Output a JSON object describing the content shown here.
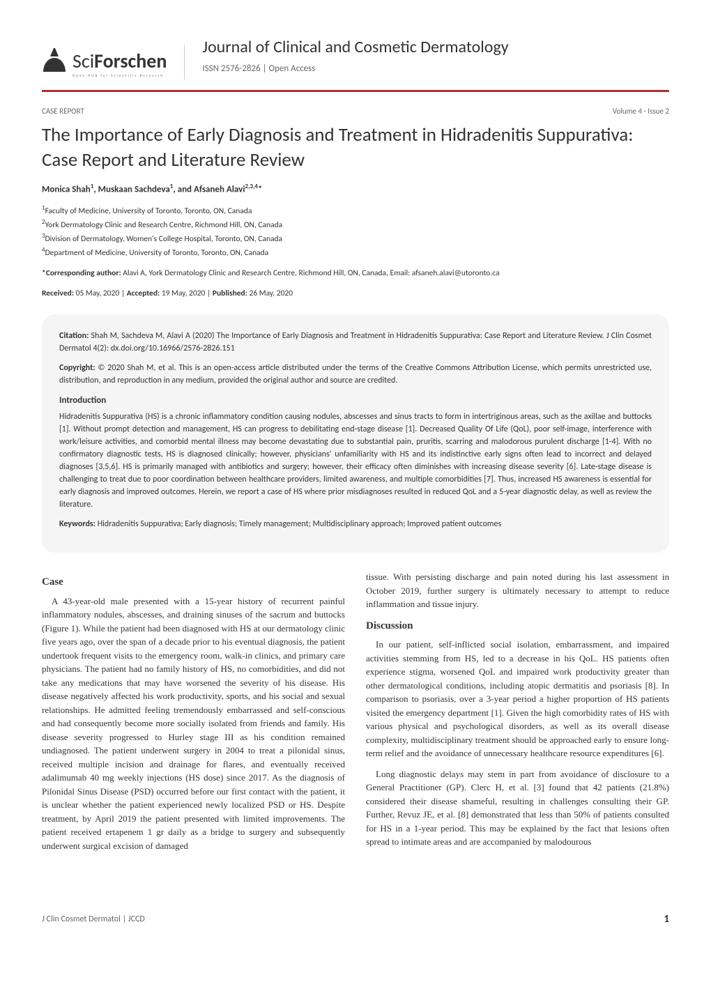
{
  "logo": {
    "main_text_left": "Sci",
    "main_text_right": "Forschen",
    "tagline": "Open HUB for Scientific Research"
  },
  "journal": {
    "title": "Journal of Clinical and Cosmetic Dermatology",
    "issn": "ISSN 2576-2826",
    "access": "Open Access"
  },
  "meta": {
    "type": "CASE REPORT",
    "volume": "Volume 4 - Issue 2"
  },
  "article": {
    "title": "The Importance of Early Diagnosis and Treatment in Hidradenitis Suppurativa: Case Report and Literature Review",
    "authors_html": "Monica Shah<sup>1</sup>, Muskaan Sachdeva<sup>1</sup>, and Afsaneh Alavi<sup>2,3,4</sup>*"
  },
  "affiliations": {
    "a1": "Faculty of Medicine, University of Toronto, Toronto, ON, Canada",
    "a2": "York Dermatology Clinic and Research Centre, Richmond Hill, ON, Canada",
    "a3": "Division of Dermatology, Women's College Hospital, Toronto, ON, Canada",
    "a4": "Department of Medicine, University of Toronto, Toronto, ON, Canada"
  },
  "corresponding": {
    "label": "*Corresponding author:",
    "text": "Alavi A, York Dermatology Clinic and Research Centre, Richmond Hill, ON, Canada, Email: afsaneh.alavi@utoronto.ca"
  },
  "dates": {
    "received_label": "Received:",
    "received": "05 May, 2020",
    "accepted_label": "Accepted:",
    "accepted": "19 May, 2020",
    "published_label": "Published:",
    "published": "26 May, 2020"
  },
  "abstract": {
    "citation_label": "Citation:",
    "citation": "Shah M, Sachdeva M, Alavi A (2020) The Importance of Early Diagnosis and Treatment in Hidradenitis Suppurativa: Case Report and Literature Review. J Clin Cosmet Dermatol 4(2): dx.doi.org/10.16966/2576-2826.151",
    "copyright_label": "Copyright:",
    "copyright": "© 2020 Shah M, et al. This is an open-access article distributed under the terms of the Creative Commons Attribution License, which permits unrestricted use, distribution, and reproduction in any medium, provided the original author and source are credited.",
    "intro_heading": "Introduction",
    "intro_text": "Hidradenitis Suppurativa (HS) is a chronic inflammatory condition causing nodules, abscesses and sinus tracts to form in intertriginous areas, such as the axillae and buttocks [1]. Without prompt detection and management, HS can progress to debilitating end-stage disease [1]. Decreased Quality Of Life (QoL), poor self-image, interference with work/leisure activities, and comorbid mental illness may become devastating due to substantial pain, pruritis, scarring and malodorous purulent discharge [1-4]. With no confirmatory diagnostic tests, HS is diagnosed clinically; however, physicians' unfamiliarity with HS and its indistinctive early signs often lead to incorrect and delayed diagnoses [3,5,6]. HS is primarily managed with antibiotics and surgery; however, their efficacy often diminishes with increasing disease severity [6]. Late-stage disease is challenging to treat due to poor coordination between healthcare providers, limited awareness, and multiple comorbidities [7]. Thus, increased HS awareness is essential for early diagnosis and improved outcomes. Herein, we report a case of HS where prior misdiagnoses resulted in reduced QoL and a 5-year diagnostic delay, as well as review the literature.",
    "keywords_label": "Keywords:",
    "keywords": "Hidradenitis Suppurativa; Early diagnosis; Timely management; Multidisciplinary approach; Improved patient outcomes"
  },
  "body": {
    "case_heading": "Case",
    "case_p1": "A 43-year-old male presented with a 15-year history of recurrent painful inflammatory nodules, abscesses, and draining sinuses of the sacrum and buttocks (Figure 1). While the patient had been diagnosed with HS at our dermatology clinic five years ago, over the span of a decade prior to his eventual diagnosis, the patient undertook frequent visits to the emergency room, walk-in clinics, and primary care physicians. The patient had no family history of HS, no comorbidities, and did not take any medications that may have worsened the severity of his disease. His disease negatively affected his work productivity, sports, and his social and sexual relationships. He admitted feeling tremendously embarrassed and self-conscious and had consequently become more socially isolated from friends and family. His disease severity progressed to Hurley stage III as his condition remained undiagnosed. The patient underwent surgery in 2004 to treat a pilonidal sinus, received multiple incision and drainage for flares, and eventually received adalimumab 40 mg weekly injections (HS dose) since 2017. As the diagnosis of Pilonidal Sinus Disease (PSD) occurred before our first contact with the patient, it is unclear whether the patient experienced newly localized PSD or HS. Despite treatment, by April 2019 the patient presented with limited improvements. The patient received ertapenem 1 gr daily as a bridge to surgery and subsequently underwent surgical excision of damaged",
    "case_p2": "tissue. With persisting discharge and pain noted during his last assessment in October 2019, further surgery is ultimately necessary to attempt to reduce inflammation and tissue injury.",
    "discussion_heading": "Discussion",
    "discussion_p1": "In our patient, self-inflicted social isolation, embarrassment, and impaired activities stemming from HS, led to a decrease in his QoL. HS patients often experience stigma, worsened QoL and impaired work productivity greater than other dermatological conditions, including atopic dermatitis and psoriasis [8]. In comparison to psoriasis, over a 3-year period a higher proportion of HS patients visited the emergency department [1]. Given the high comorbidity rates of HS with various physical and psychological disorders, as well as its overall disease complexity, multidisciplinary treatment should be approached early to ensure long-term relief and the avoidance of unnecessary healthcare resource expenditures [6].",
    "discussion_p2": "Long diagnostic delays may stem in part from avoidance of disclosure to a General Practitioner (GP). Clerc H, et al. [3] found that 42 patients (21.8%) considered their disease shameful, resulting in challenges consulting their GP. Further, Revuz JE, et al. [8] demonstrated that less than 50% of patients consulted for HS in a 1-year period. This may be explained by the fact that lesions often spread to intimate areas and are accompanied by malodourous"
  },
  "footer": {
    "left": "J Clin Cosmet Dermatol  |  JCCD",
    "page": "1"
  },
  "colors": {
    "accent_red": "#b03030",
    "text_primary": "#333333",
    "text_secondary": "#666666",
    "abstract_bg": "#f5f5f5",
    "background": "#ffffff"
  },
  "typography": {
    "body_font": "Times New Roman, serif",
    "ui_font": "Calibri, Segoe UI, sans-serif",
    "title_fontsize": 27,
    "journal_title_fontsize": 24,
    "body_fontsize": 13,
    "abstract_fontsize": 12
  }
}
